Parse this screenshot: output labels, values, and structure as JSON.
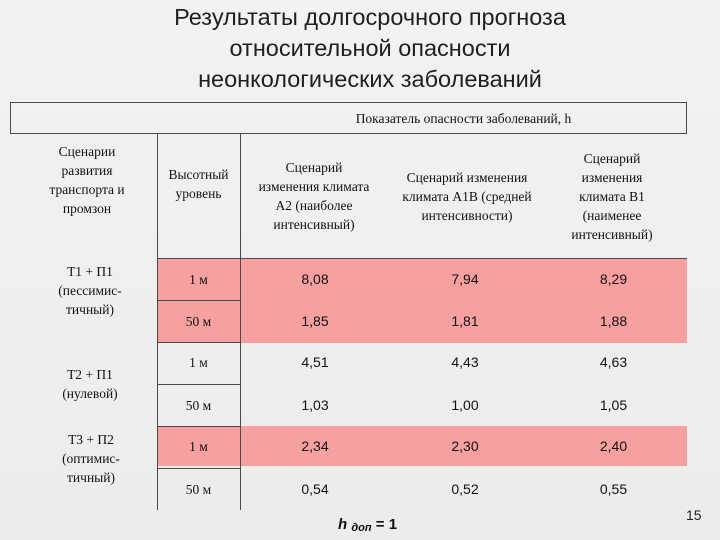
{
  "title": {
    "line1": "Результаты долгосрочного прогноза",
    "line2": "относительной опасности",
    "line3": "неонкологических заболеваний"
  },
  "table": {
    "header_top": "Показатель опасности заболеваний, h",
    "col_scenarios": "Сценарии развития транспорта и промзон",
    "col_height": "Высотный уровень",
    "climate_cols": [
      "Сценарий изменения климата А2 (наиболее интенсивный)",
      "Сценарий изменения климата А1В (средней интенсивности)",
      "Сценарий изменения климата В1 (наименее интенсивный)"
    ],
    "groups": [
      {
        "scenario": "Т1 + П1 (пессимис- тичный)",
        "rows": [
          {
            "level": "1 м",
            "values": [
              "8,08",
              "7,94",
              "8,29"
            ]
          },
          {
            "level": "50 м",
            "values": [
              "1,85",
              "1,81",
              "1,88"
            ]
          }
        ]
      },
      {
        "scenario": "Т2 + П1 (нулевой)",
        "rows": [
          {
            "level": "1 м",
            "values": [
              "4,51",
              "4,43",
              "4,63"
            ]
          },
          {
            "level": "50 м",
            "values": [
              "1,03",
              "1,00",
              "1,05"
            ]
          }
        ]
      },
      {
        "scenario": "Т3 + П2 (оптимис- тичный)",
        "rows": [
          {
            "level": "1 м",
            "values": [
              "2,34",
              "2,30",
              "2,40"
            ]
          },
          {
            "level": "50 м",
            "values": [
              "0,54",
              "0,52",
              "0,55"
            ]
          }
        ]
      }
    ]
  },
  "footer": {
    "h_symbol": "h",
    "h_subscript": "доп",
    "h_value": "= 1"
  },
  "page_number": "15",
  "colors": {
    "highlight": "#f6a0a0",
    "border": "#4a4a4a",
    "background": "#efefef"
  }
}
